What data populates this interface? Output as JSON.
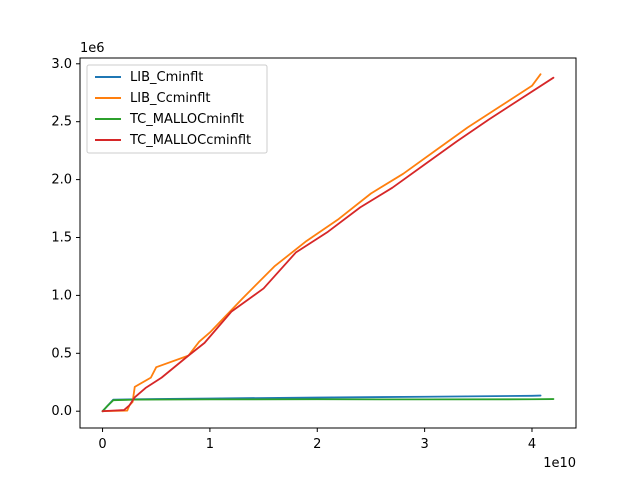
{
  "chart_data": {
    "type": "line",
    "x_offset_label": "1e10",
    "y_offset_label": "1e6",
    "x_ticks": [
      0,
      1,
      2,
      3,
      4
    ],
    "y_ticks": [
      0.0,
      0.5,
      1.0,
      1.5,
      2.0,
      2.5,
      3.0
    ],
    "x_tick_labels": [
      "0",
      "1",
      "2",
      "3",
      "4"
    ],
    "y_tick_labels": [
      "0.0",
      "0.5",
      "1.0",
      "1.5",
      "2.0",
      "2.5",
      "3.0"
    ],
    "xlim": [
      -0.21,
      4.41
    ],
    "ylim": [
      -0.145,
      3.05
    ],
    "grid": false,
    "legend_position": "upper-left",
    "series": [
      {
        "name": "LIB_Cminflt",
        "color": "#1f77b4",
        "x": [
          0,
          0.1,
          0.5,
          1,
          2,
          3,
          4,
          4.08
        ],
        "y": [
          0.0,
          0.1,
          0.105,
          0.11,
          0.118,
          0.125,
          0.133,
          0.135
        ]
      },
      {
        "name": "LIB_Ccminflt",
        "color": "#ff7f0e",
        "x": [
          0,
          0.02,
          0.23,
          0.25,
          0.28,
          0.3,
          0.45,
          0.5,
          0.8,
          0.9,
          1.0,
          1.3,
          1.6,
          1.9,
          2.2,
          2.5,
          2.8,
          3.1,
          3.4,
          3.7,
          4.0,
          4.08
        ],
        "y": [
          0.0,
          0.001,
          0.005,
          0.05,
          0.08,
          0.21,
          0.29,
          0.38,
          0.48,
          0.6,
          0.68,
          0.97,
          1.25,
          1.47,
          1.66,
          1.88,
          2.05,
          2.25,
          2.45,
          2.63,
          2.81,
          2.91
        ]
      },
      {
        "name": "TC_MALLOCminflt",
        "color": "#2ca02c",
        "x": [
          0,
          0.05,
          0.1,
          0.3,
          1,
          2,
          3,
          4,
          4.2
        ],
        "y": [
          0.0,
          0.05,
          0.095,
          0.1,
          0.102,
          0.103,
          0.102,
          0.103,
          0.105
        ]
      },
      {
        "name": "TC_MALLOCcminflt",
        "color": "#d62728",
        "x": [
          0,
          0.05,
          0.2,
          0.25,
          0.3,
          0.4,
          0.55,
          0.8,
          0.95,
          1.2,
          1.5,
          1.8,
          2.1,
          2.4,
          2.7,
          3.0,
          3.3,
          3.6,
          3.9,
          4.2
        ],
        "y": [
          0.0,
          0.003,
          0.01,
          0.05,
          0.12,
          0.2,
          0.29,
          0.48,
          0.59,
          0.86,
          1.06,
          1.37,
          1.55,
          1.76,
          1.93,
          2.13,
          2.33,
          2.52,
          2.7,
          2.88
        ]
      }
    ]
  }
}
